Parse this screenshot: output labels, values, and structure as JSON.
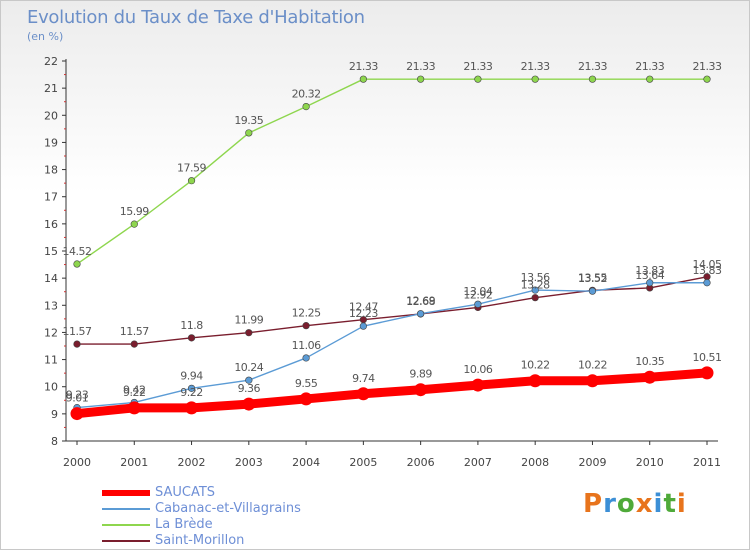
{
  "header": {
    "title": "Evolution du Taux de Taxe d'Habitation",
    "subtitle": "(en %)"
  },
  "logo": {
    "text": "Proxiti",
    "colors": [
      "#e8741c",
      "#3c8fd6",
      "#4faa3a",
      "#e8741c",
      "#3c8fd6",
      "#4faa3a",
      "#e8741c"
    ]
  },
  "chart_data": {
    "type": "line",
    "x": [
      2000,
      2001,
      2002,
      2003,
      2004,
      2005,
      2006,
      2007,
      2008,
      2009,
      2010,
      2011
    ],
    "ylim": [
      8,
      22
    ],
    "yticks": [
      8,
      9,
      10,
      11,
      12,
      13,
      14,
      15,
      16,
      17,
      18,
      19,
      20,
      21,
      22
    ],
    "grid": false,
    "legend_position": "bottom-left",
    "series": [
      {
        "name": "SAUCATS",
        "color": "#ff0000",
        "values": [
          9.01,
          9.22,
          9.22,
          9.36,
          9.55,
          9.74,
          9.89,
          10.06,
          10.22,
          10.22,
          10.35,
          10.51
        ],
        "labels": [
          "9.01",
          "9.22",
          "9.22",
          "9.36",
          "9.55",
          "9.74",
          "9.89",
          "10.06",
          "10.22",
          "10.22",
          "10.35",
          "10.51"
        ]
      },
      {
        "name": "Cabanac-et-Villagrains",
        "color": "#5b9bd5",
        "values": [
          9.23,
          9.42,
          9.94,
          10.24,
          11.06,
          12.23,
          12.69,
          13.04,
          13.56,
          13.52,
          13.83,
          13.83
        ],
        "labels": [
          "9.23",
          "9.42",
          "9.94",
          "10.24",
          "11.06",
          "12.23",
          "12.69",
          "13.04",
          "13.56",
          "13.52",
          "13.83",
          "13.83"
        ]
      },
      {
        "name": "La Brède",
        "color": "#8ed64e",
        "values": [
          14.52,
          15.99,
          17.59,
          19.35,
          20.32,
          21.33,
          21.33,
          21.33,
          21.33,
          21.33,
          21.33,
          21.33
        ],
        "labels": [
          "14.52",
          "15.99",
          "17.59",
          "19.35",
          "20.32",
          "21.33",
          "21.33",
          "21.33",
          "21.33",
          "21.33",
          "21.33",
          "21.33"
        ]
      },
      {
        "name": "Saint-Morillon",
        "color": "#7a1e2e",
        "values": [
          11.57,
          11.57,
          11.8,
          11.99,
          12.25,
          12.47,
          12.68,
          12.92,
          13.28,
          13.55,
          13.64,
          14.05
        ],
        "labels": [
          "11.57",
          "11.57",
          "11.8",
          "11.99",
          "12.25",
          "12.47",
          "12.68",
          "12.92",
          "13.28",
          "13.55",
          "13.64",
          "14.05"
        ]
      }
    ]
  }
}
